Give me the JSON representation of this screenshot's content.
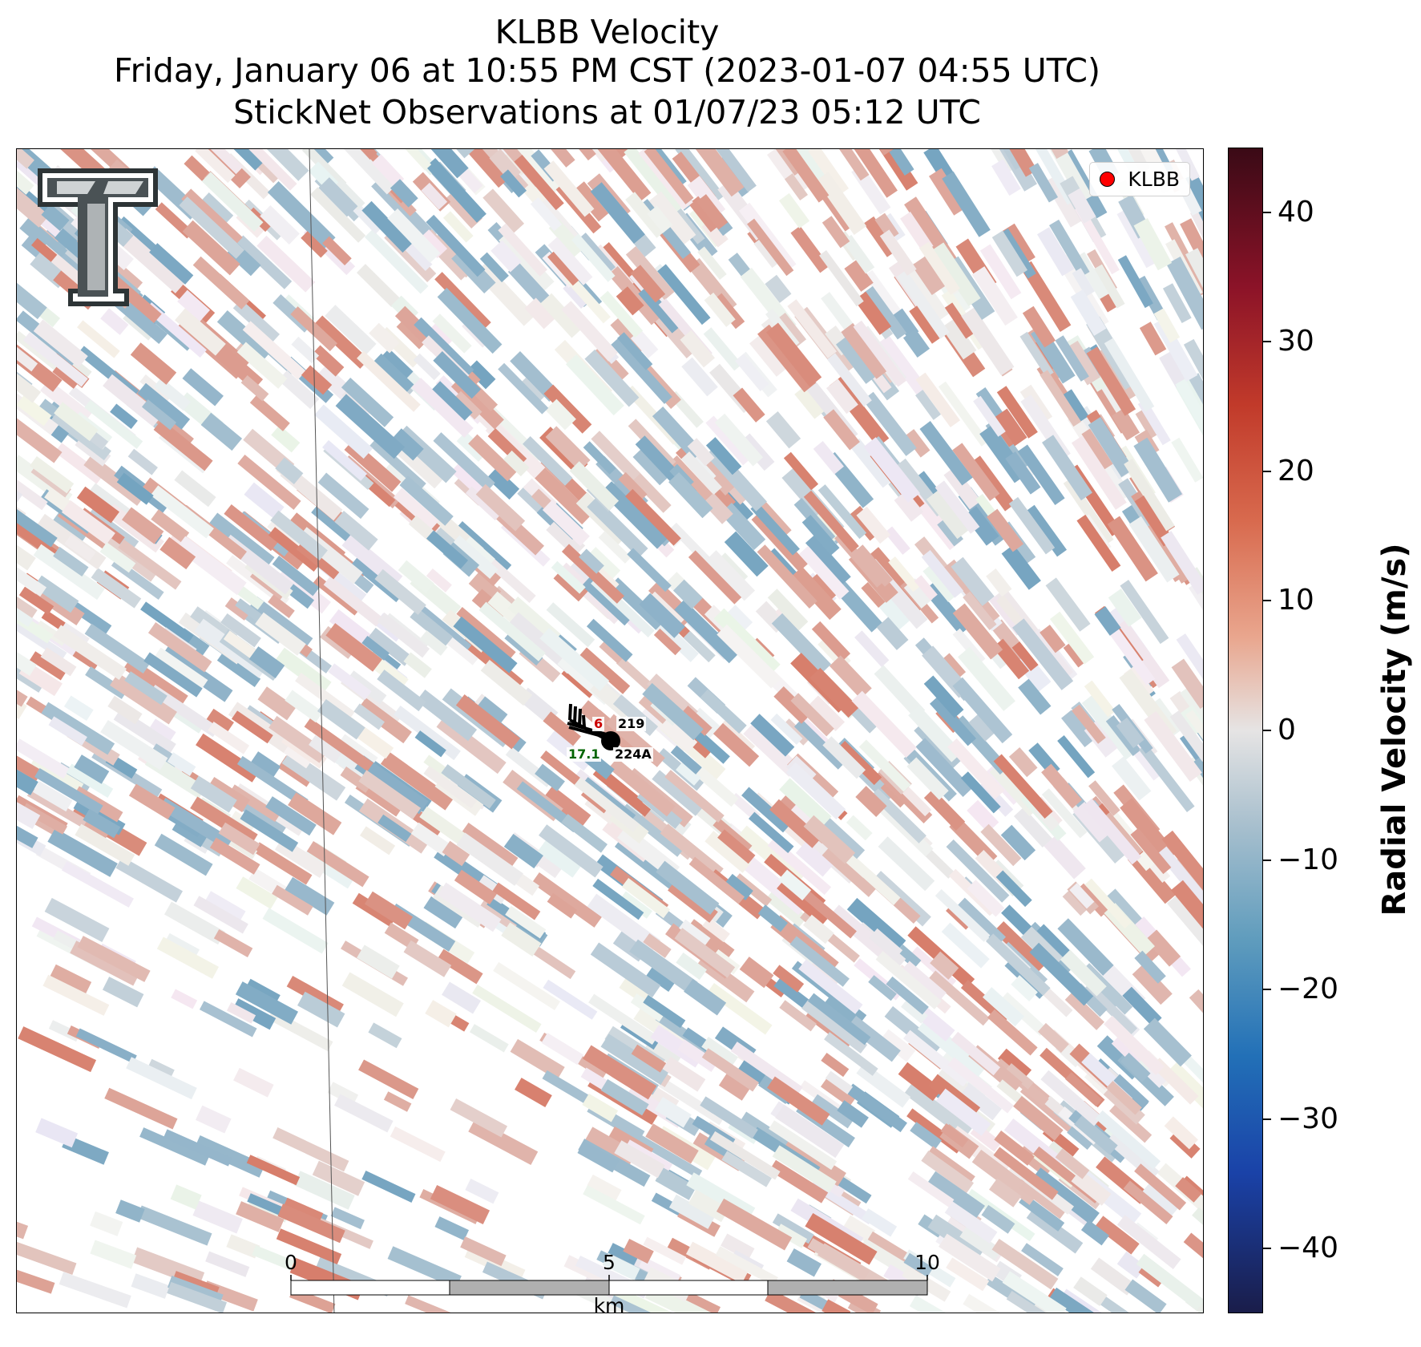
{
  "title": {
    "line1": "KLBB Velocity",
    "line2": "Friday, January 06 at 10:55 PM CST (2023-01-07 04:55 UTC)",
    "line3": "StickNet Observations at 01/07/23 05:12 UTC"
  },
  "legend": {
    "label": "KLBB",
    "marker_color": "#ff0000"
  },
  "colorbar": {
    "label": "Radial Velocity (m/s)",
    "range": [
      -45,
      45
    ],
    "ticks": [
      "40",
      "30",
      "20",
      "10",
      "0",
      "−10",
      "−20",
      "−30",
      "−40"
    ],
    "tick_values": [
      40,
      30,
      20,
      10,
      0,
      -10,
      -20,
      -30,
      -40
    ],
    "colors": {
      "positive_max": "#3a0a16",
      "neutral": "#e6e4e4",
      "negative_max": "#1a1d4a"
    }
  },
  "scalebar": {
    "labels": [
      "0",
      "5",
      "10"
    ],
    "unit": "km"
  },
  "station": {
    "temperature": "6",
    "id_top": "219",
    "dewpoint": "17.1",
    "id_bottom": "224A",
    "temp_color": "#cc0000",
    "dew_color": "#006400"
  },
  "logo": {
    "name": "double-t-logo-icon"
  }
}
